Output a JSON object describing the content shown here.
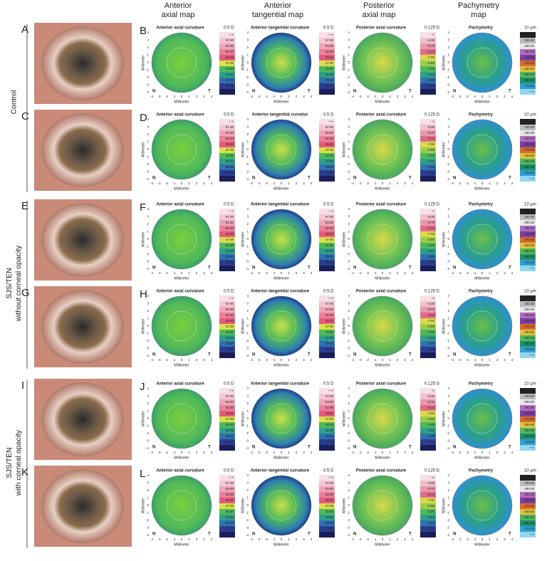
{
  "columns": [
    {
      "header": "Anterior\naxial map",
      "unit": "0.5 D",
      "levels": [
        "+ ∞",
        "57.00",
        "54.50",
        "52.00",
        "49.50",
        "47.00",
        "44.50",
        "42.00",
        "39.50",
        "37.00",
        "- ∞"
      ]
    },
    {
      "header": "Anterior\ntangential map",
      "unit": "0.5 D",
      "levels": [
        "+ ∞",
        "57.00",
        "54.50",
        "52.00",
        "49.50",
        "47.00",
        "44.50",
        "42.00",
        "39.50",
        "37.00",
        "- ∞"
      ]
    },
    {
      "header": "Posterior\naxial map",
      "unit": "0.125 D",
      "levels": [
        "- ∞",
        "-9.38",
        "-8.75",
        "-8.13",
        "-7.50",
        "-6.88",
        "-6.25",
        "-5.63",
        "-5.00",
        "-4.38",
        "+ ∞"
      ]
    },
    {
      "header": "Pachymetry\nmap",
      "unit": "10 µm",
      "levels": [
        "- ∞",
        "230.00",
        "290.00",
        "350.00",
        "410.00",
        "470.00",
        "530.00",
        "590.00",
        "650.00",
        "710.00",
        "+ ∞"
      ]
    }
  ],
  "groups": [
    {
      "label": "Control",
      "rows": [
        {
          "photo": "A",
          "maps": "B",
          "titles": [
            "Anterior axial curvature",
            "Anterior tangential curvature",
            "Posterior axial curvature",
            "Pachymetry"
          ]
        },
        {
          "photo": "C",
          "maps": "D",
          "titles": [
            "Anterior axial curvature",
            "Anterior tangential curvatur",
            "Posterior axial curvature",
            "Pachymetry"
          ]
        }
      ]
    },
    {
      "label": "SJS/TEN\nwithout corneal opacity",
      "rows": [
        {
          "photo": "E",
          "maps": "F",
          "titles": [
            "Anterior axial curvature",
            "Anterior tangential curvature",
            "Posterior axial curvature",
            "Pachymetry"
          ]
        },
        {
          "photo": "G",
          "maps": "H",
          "titles": [
            "Anterior axial curvature",
            "Anterior tangential curvature",
            "Posterior axial curvature",
            "Pachymetry"
          ]
        }
      ]
    },
    {
      "label": "SJS/TEN\nwith corneal opacity",
      "rows": [
        {
          "photo": "I",
          "maps": "J",
          "titles": [
            "Anterior axial curvature",
            "Anterior tangential curvature",
            "Posterior axial curvature",
            "Pachymetry"
          ]
        },
        {
          "photo": "K",
          "maps": "L",
          "titles": [
            "Anterior axial curvature",
            "Anterior tangential curvature",
            "Posterior axial curvature",
            "Pachymetry"
          ]
        }
      ]
    }
  ],
  "axis": {
    "label": "Millimeter",
    "ticks": [
      -4,
      -3,
      -2,
      -1,
      0,
      1,
      2,
      3,
      4
    ],
    "nasal": "N",
    "temporal": "T"
  }
}
